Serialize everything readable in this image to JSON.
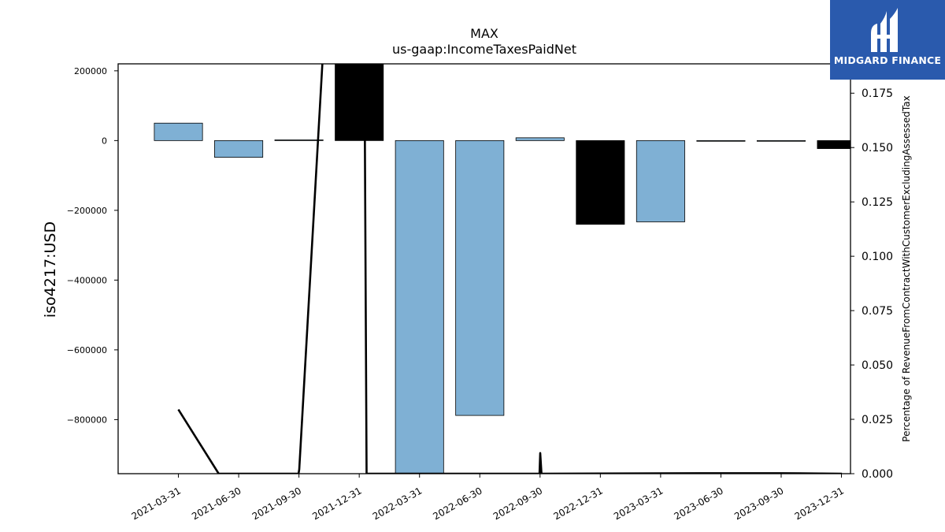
{
  "chart_data": {
    "type": "bar",
    "title": "MAX",
    "subtitle": "us-gaap:IncomeTaxesPaidNet",
    "ylabel": "iso4217:USD",
    "y2label": "Percentage of RevenueFromContractWithCustomerExcludingAssessedTax",
    "categories": [
      "2021-03-31",
      "2021-06-30",
      "2021-09-30",
      "2021-12-31",
      "2022-03-31",
      "2022-06-30",
      "2022-09-30",
      "2022-12-31",
      "2023-03-31",
      "2023-06-30",
      "2023-09-30",
      "2023-12-31"
    ],
    "series": [
      {
        "values": [
          50000,
          -48000,
          2000,
          220000,
          -1000000,
          -788000,
          8000,
          -240000,
          -233000,
          -2000,
          -2000,
          -23000
        ],
        "colors": [
          "#7fb0d4",
          "#7fb0d4",
          "#7fb0d4",
          "#000000",
          "#7fb0d4",
          "#7fb0d4",
          "#7fb0d4",
          "#000000",
          "#7fb0d4",
          "#7fb0d4",
          "#7fb0d4",
          "#000000"
        ]
      }
    ],
    "line_series": {
      "axis": "right",
      "color": "#000000",
      "points": [
        {
          "x": "2021-03-31",
          "y": 0.0295
        },
        {
          "x": "2021-05-31",
          "y": 0.0
        },
        {
          "x": "2021-09-29",
          "y": 0.0
        },
        {
          "x": "2021-09-30",
          "y": 0.002
        },
        {
          "x": "2021-11-25",
          "y": 0.3
        },
        {
          "x": "2022-01-05",
          "y": 0.3
        },
        {
          "x": "2022-01-10",
          "y": 0.0
        },
        {
          "x": "2022-09-29",
          "y": 0.0
        },
        {
          "x": "2022-09-30",
          "y": 0.0095
        },
        {
          "x": "2022-10-02",
          "y": 0.0
        },
        {
          "x": "2023-06-30",
          "y": 0.0002
        },
        {
          "x": "2023-09-30",
          "y": 0.0002
        },
        {
          "x": "2023-12-31",
          "y": 0.0
        }
      ]
    },
    "ylim": [
      -955000,
      220000
    ],
    "y2lim": [
      0,
      0.1885
    ],
    "yticks": [
      200000,
      0,
      -200000,
      -400000,
      -600000,
      -800000
    ],
    "ytick_labels": [
      "200000",
      "0",
      "−200000",
      "−400000",
      "−600000",
      "−800000"
    ],
    "y2ticks": [
      0,
      0.025,
      0.05,
      0.075,
      0.1,
      0.125,
      0.15,
      0.175
    ],
    "y2tick_labels": [
      "0.000",
      "0.025",
      "0.050",
      "0.075",
      "0.100",
      "0.125",
      "0.150",
      "0.175"
    ],
    "grid": false,
    "legend": "none"
  },
  "logo": {
    "name": "MIDGARD FINANCE",
    "color": "#2a5aad"
  }
}
